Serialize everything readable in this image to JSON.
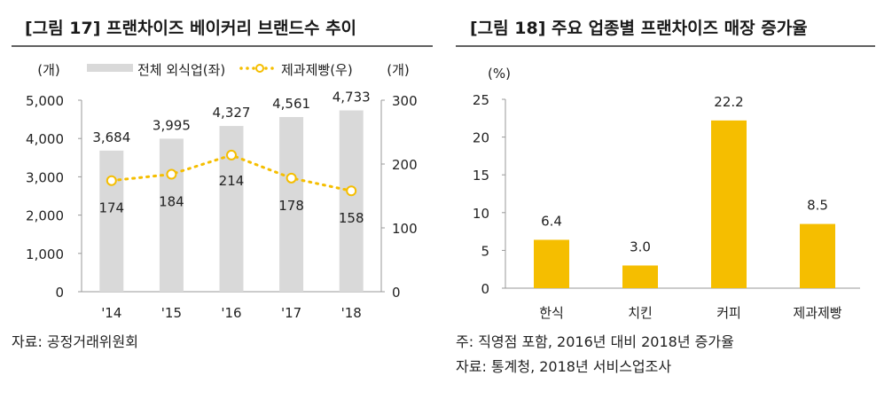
{
  "chart_data": [
    {
      "type": "bar+line",
      "title": "[그림 17] 프랜차이즈 베이커리 브랜드수 추이",
      "categories": [
        "'14",
        "'15",
        "'16",
        "'17",
        "'18"
      ],
      "left_unit": "(개)",
      "right_unit": "(개)",
      "left_ylim": [
        0,
        5000
      ],
      "left_ticks": [
        "0",
        "1,000",
        "2,000",
        "3,000",
        "4,000",
        "5,000"
      ],
      "right_ylim": [
        0,
        300
      ],
      "right_ticks": [
        "0",
        "100",
        "200",
        "300"
      ],
      "series": [
        {
          "name": "전체 외식업(좌)",
          "kind": "bar",
          "axis": "left",
          "color": "#D9D9D9",
          "values": [
            3684,
            3995,
            4327,
            4561,
            4733
          ],
          "labels": [
            "3,684",
            "3,995",
            "4,327",
            "4,561",
            "4,733"
          ]
        },
        {
          "name": "제과제빵(우)",
          "kind": "line",
          "axis": "right",
          "color": "#F5BE00",
          "values": [
            174,
            184,
            214,
            178,
            158
          ],
          "labels": [
            "174",
            "184",
            "214",
            "178",
            "158"
          ]
        }
      ],
      "legend": "top",
      "grid": false,
      "source": "자료: 공정거래위원회"
    },
    {
      "type": "bar",
      "title": "[그림 18] 주요 업종별 프랜차이즈 매장 증가율",
      "categories": [
        "한식",
        "치킨",
        "커피",
        "제과제빵"
      ],
      "unit": "(%)",
      "ylim": [
        0,
        25
      ],
      "ticks": [
        "0",
        "5",
        "10",
        "15",
        "20",
        "25"
      ],
      "values": [
        6.4,
        3.0,
        22.2,
        8.5
      ],
      "labels": [
        "6.4",
        "3.0",
        "22.2",
        "8.5"
      ],
      "color": "#F5BE00",
      "grid": false,
      "note": "주: 직영점 포함, 2016년 대비 2018년 증가율",
      "source": "자료: 통계청, 2018년 서비스업조사"
    }
  ]
}
